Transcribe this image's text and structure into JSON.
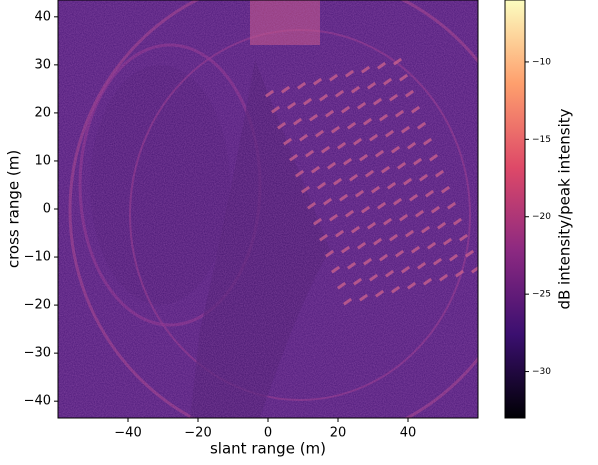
{
  "chart_data": {
    "type": "image",
    "xlabel": "slant range (m)",
    "ylabel": "cross range (m)",
    "xlim": [
      -60,
      60
    ],
    "ylim": [
      -43.5,
      43.5
    ],
    "xticks": [
      {
        "value": -40,
        "label": "−40"
      },
      {
        "value": -20,
        "label": "−20"
      },
      0,
      20,
      40
    ],
    "yticks": [
      {
        "value": -40,
        "label": "−40"
      },
      {
        "value": -30,
        "label": "−30"
      },
      {
        "value": -20,
        "label": "−20"
      },
      {
        "value": -10,
        "label": "−10"
      },
      0,
      10,
      20,
      30,
      40
    ],
    "colorbar": {
      "label": "dB intensity/peak intensity",
      "cmap": "magma",
      "colors": [
        "#000004",
        "#3b0f70",
        "#8c2981",
        "#de4968",
        "#fe9f6d",
        "#fcfdbf"
      ],
      "clim": [
        -33,
        -6
      ],
      "ticks": [
        {
          "value": -30,
          "label": "−30"
        },
        {
          "value": -25,
          "label": "−25"
        },
        {
          "value": -20,
          "label": "−20"
        },
        {
          "value": -15,
          "label": "−15"
        },
        {
          "value": -10,
          "label": "−10"
        }
      ]
    }
  }
}
